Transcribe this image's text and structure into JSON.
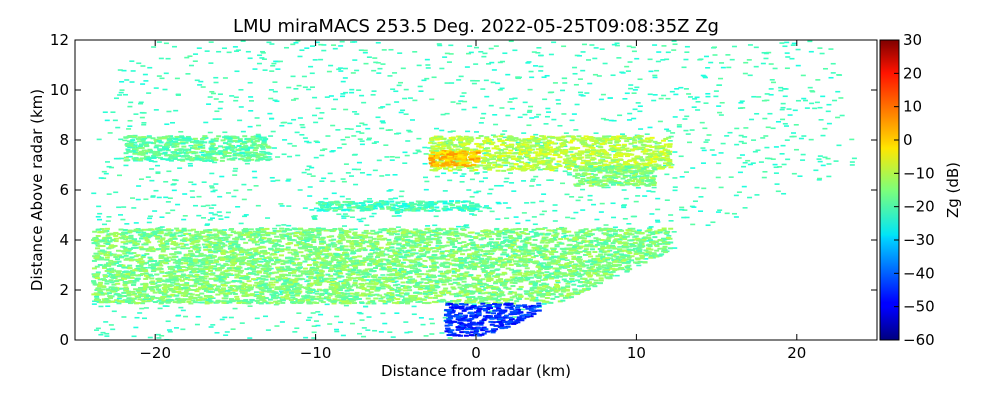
{
  "chart_data": {
    "type": "heatmap",
    "title": "LMU miraMACS 253.5 Deg. 2022-05-25T09:08:35Z  Zg",
    "xlabel": "Distance from radar (km)",
    "ylabel": "Distance Above radar  (km)",
    "xlim": [
      -25,
      25
    ],
    "ylim": [
      0,
      12
    ],
    "xticks": [
      -20,
      -10,
      0,
      10,
      20
    ],
    "xtick_labels": [
      "−20",
      "−10",
      "0",
      "10",
      "20"
    ],
    "yticks": [
      0,
      2,
      4,
      6,
      8,
      10,
      12
    ],
    "ytick_labels": [
      "0",
      "2",
      "4",
      "6",
      "8",
      "10",
      "12"
    ],
    "colorbar": {
      "label": "Zg (dB)",
      "range": [
        -60,
        30
      ],
      "ticks": [
        -60,
        -50,
        -40,
        -30,
        -20,
        -10,
        0,
        10,
        20,
        30
      ],
      "tick_labels": [
        "−60",
        "−50",
        "−40",
        "−30",
        "−20",
        "−10",
        "0",
        "10",
        "20",
        "30"
      ],
      "colormap": "jet"
    },
    "features": [
      {
        "x0": -24,
        "x1": 12,
        "y0": 1.5,
        "y1": 4.5,
        "value": -15
      },
      {
        "x0": -3,
        "x1": 12,
        "y0": 6.8,
        "y1": 8.2,
        "value": -10
      },
      {
        "x0": -3,
        "x1": 0,
        "y0": 7.0,
        "y1": 7.6,
        "value": 2
      },
      {
        "x0": 6,
        "x1": 11,
        "y0": 6.2,
        "y1": 7.0,
        "value": -15
      },
      {
        "x0": -22,
        "x1": -13,
        "y0": 7.2,
        "y1": 8.2,
        "value": -18
      },
      {
        "x0": -10,
        "x1": 0,
        "y0": 5.2,
        "y1": 5.6,
        "value": -20
      },
      {
        "x0": -2,
        "x1": 4,
        "y0": 0.2,
        "y1": 1.5,
        "value": -45
      }
    ],
    "grid": false,
    "legend": "none"
  }
}
